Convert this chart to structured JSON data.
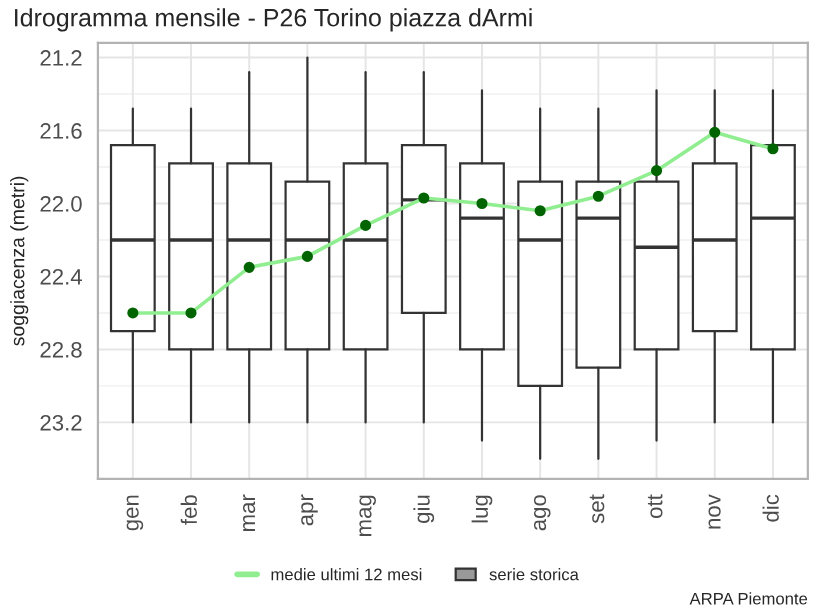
{
  "chart_data": {
    "type": "box",
    "title": "Idrogramma mensile - P26 Torino piazza dArmi",
    "ylabel": "soggiacenza (metri)",
    "categories": [
      "gen",
      "feb",
      "mar",
      "apr",
      "mag",
      "giu",
      "lug",
      "ago",
      "set",
      "ott",
      "nov",
      "dic"
    ],
    "ylim": [
      23.51,
      21.12
    ],
    "yticks": [
      21.2,
      21.6,
      {
        "value": 22,
        "label": "22.0"
      },
      22.4,
      22.8,
      23.2
    ],
    "grid": true,
    "legend": "bottom",
    "annotations": [
      "ARPA Piemonte"
    ],
    "series": [
      {
        "name": "serie storica",
        "color": "#333333",
        "boxes": [
          {
            "low": 21.48,
            "q1": 21.68,
            "median": 22.2,
            "q3": 22.7,
            "high": 23.2
          },
          {
            "low": 21.48,
            "q1": 21.78,
            "median": 22.2,
            "q3": 22.8,
            "high": 23.2
          },
          {
            "low": 21.28,
            "q1": 21.78,
            "median": 22.2,
            "q3": 22.8,
            "high": 23.2
          },
          {
            "low": 21.2,
            "q1": 21.88,
            "median": 22.2,
            "q3": 22.8,
            "high": 23.2
          },
          {
            "low": 21.28,
            "q1": 21.78,
            "median": 22.2,
            "q3": 22.8,
            "high": 23.2
          },
          {
            "low": 21.28,
            "q1": 21.68,
            "median": 21.98,
            "q3": 22.6,
            "high": 23.2
          },
          {
            "low": 21.38,
            "q1": 21.78,
            "median": 22.08,
            "q3": 22.8,
            "high": 23.3
          },
          {
            "low": 21.48,
            "q1": 21.88,
            "median": 22.2,
            "q3": 23.0,
            "high": 23.4
          },
          {
            "low": 21.48,
            "q1": 21.88,
            "median": 22.08,
            "q3": 22.9,
            "high": 23.4
          },
          {
            "low": 21.38,
            "q1": 21.88,
            "median": 22.24,
            "q3": 22.8,
            "high": 23.3
          },
          {
            "low": 21.38,
            "q1": 21.78,
            "median": 22.2,
            "q3": 22.7,
            "high": 23.2
          },
          {
            "low": 21.38,
            "q1": 21.68,
            "median": 22.08,
            "q3": 22.8,
            "high": 23.2
          }
        ]
      },
      {
        "name": "medie ultimi 12 mesi",
        "type": "line",
        "color": "#90ee90",
        "marker": "circle",
        "colors": [
          "#006400",
          "#006400",
          "#006400",
          "#006400",
          "#006400",
          "#006400",
          "#006400",
          "#006400",
          "#006400",
          "#006400",
          "#006400",
          "#006400"
        ],
        "values": [
          22.6,
          22.6,
          22.35,
          22.29,
          22.12,
          21.97,
          22.0,
          22.04,
          21.96,
          21.82,
          21.61,
          21.7
        ]
      }
    ]
  }
}
